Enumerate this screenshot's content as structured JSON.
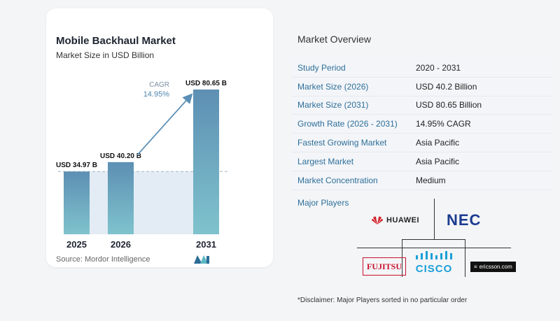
{
  "chart_data": {
    "type": "bar",
    "title": "Mobile Backhaul Market",
    "subtitle": "Market Size in USD Billion",
    "categories": [
      "2025",
      "2026",
      "2031"
    ],
    "values": [
      34.97,
      40.2,
      80.65
    ],
    "value_labels": [
      "USD 34.97 B",
      "USD 40.20 B",
      "USD 80.65 B"
    ],
    "ylim": [
      0,
      80.65
    ],
    "annotation": {
      "label": "CAGR",
      "value": "14.95%"
    },
    "colors": {
      "bar_top": "#5d8fb3",
      "bar_bottom": "#7fc3cd",
      "arrow": "#5b8fb5",
      "band": "#e3ecf4"
    },
    "grid": false,
    "legend": "none"
  },
  "source": "Source:  Mordor Intelligence",
  "overview": {
    "title": "Market Overview",
    "rows": [
      {
        "label": "Study Period",
        "value": "2020 - 2031"
      },
      {
        "label": "Market Size (2026)",
        "value": "USD 40.2 Billion"
      },
      {
        "label": "Market Size (2031)",
        "value": "USD 80.65 Billion"
      },
      {
        "label": "Growth Rate (2026 - 2031)",
        "value": "14.95% CAGR"
      },
      {
        "label": "Fastest Growing Market",
        "value": "Asia Pacific"
      },
      {
        "label": "Largest Market",
        "value": "Asia Pacific"
      },
      {
        "label": "Market Concentration",
        "value": "Medium"
      }
    ]
  },
  "players": {
    "title": "Major Players",
    "huawei": "HUAWEI",
    "nec": "NEC",
    "fujitsu": "FUJITSU",
    "cisco": "CISCO",
    "ericsson": "ericsson.com"
  },
  "disclaimer": "*Disclaimer: Major Players sorted in no particular order"
}
